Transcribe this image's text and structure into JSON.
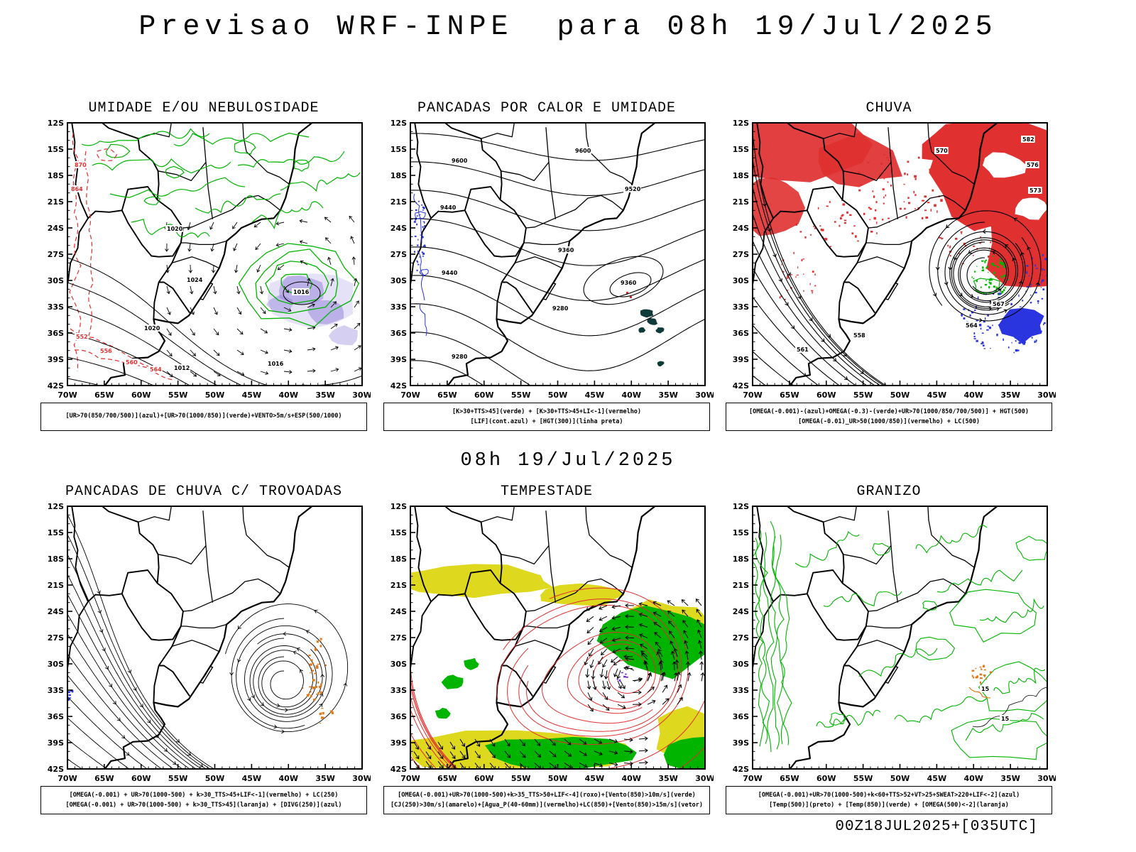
{
  "title": "Previsao WRF-INPE  para 08h 19/Jul/2025",
  "subtitle": "08h 19/Jul/2025",
  "footer": "00Z18JUL2025+[035UTC]",
  "axes": {
    "lat": [
      "12S",
      "15S",
      "18S",
      "21S",
      "24S",
      "27S",
      "30S",
      "33S",
      "36S",
      "39S",
      "42S"
    ],
    "lon": [
      "70W",
      "65W",
      "60W",
      "55W",
      "50W",
      "45W",
      "40W",
      "35W",
      "30W"
    ]
  },
  "colors": {
    "green": "#00b400",
    "red": "#e03030",
    "blue": "#2a35e0",
    "orange": "#e07818",
    "yellow": "#ded81e",
    "purple": "#8878d8",
    "teal": "#0e3a3a",
    "black": "#000000"
  },
  "panels": [
    {
      "id": "umidade",
      "title": "UMIDADE E/OU NEBULOSIDADE",
      "caption_lines": [
        "[UR>70(850/700/500)](azul)+[UR>70(1000/850)](verde)+VENTO>5m/s+ESP(500/1000)"
      ],
      "contour_labels": {
        "black": [
          "1020",
          "1024",
          "1016",
          "1020",
          "1012",
          "1016"
        ],
        "red": [
          "870",
          "864",
          "552",
          "556",
          "560",
          "564"
        ]
      }
    },
    {
      "id": "pancadas-calor",
      "title": "PANCADAS POR CALOR E UMIDADE",
      "caption_lines": [
        "[K>30+TTS>45](verde) + [K>30+TTS>45+LI<-1](vermelho)",
        "[LIF](cont.azul) + [HGT(300)](linha preta)"
      ],
      "contour_labels": {
        "black": [
          "9600",
          "9600",
          "9520",
          "9440",
          "9440",
          "9360",
          "9280",
          "9280",
          "9360"
        ]
      }
    },
    {
      "id": "chuva",
      "title": "CHUVA",
      "caption_lines": [
        "[OMEGA(-0.001)-(azul)+OMEGA(-0.3)-(verde)+UR>70(1000/850/700/500)] + HGT(500)",
        "[OMEGA(-0.01)_UR>50(1000/850)](vermelho) + LC(500)"
      ],
      "contour_labels": {
        "black": [
          "582",
          "576",
          "573",
          "570",
          "567",
          "564",
          "561",
          "558"
        ]
      }
    },
    {
      "id": "trovoadas",
      "title": "PANCADAS DE CHUVA C/ TROVOADAS",
      "caption_lines": [
        "[OMEGA(-0.001) + UR>70(1000-500) + k>30_TTS>45+LIF<-1](vermelho) + LC(250)",
        "[OMEGA(-0.001) + UR>70(1000-500) + k>30_TTS>45](laranja) + [DIVG(250)](azul)"
      ]
    },
    {
      "id": "tempestade",
      "title": "TEMPESTADE",
      "caption_lines": [
        "[OMEGA(-0.001)+UR>70(1000-500)+k>35_TTS>50+LIF<-4](roxo)+[Vento(850)>10m/s](verde)",
        "[CJ(250)>30m/s](amarelo)+[Agua_P(40-60mm)](vermelho)+LC(850)+[Vento(850)>15m/s](vetor)"
      ]
    },
    {
      "id": "granizo",
      "title": "GRANIZO",
      "caption_lines": [
        "[OMEGA(-0.001)+UR>70(1000-500)+k<60+TTS>52+VT>25+SWEAT>220+LIF<-2](azul)",
        "[Temp(500)](preto) + [Temp(850)](verde) + [OMEGA(500)<-2](laranja)"
      ],
      "contour_labels": {
        "black": [
          "15",
          "15"
        ]
      }
    }
  ]
}
